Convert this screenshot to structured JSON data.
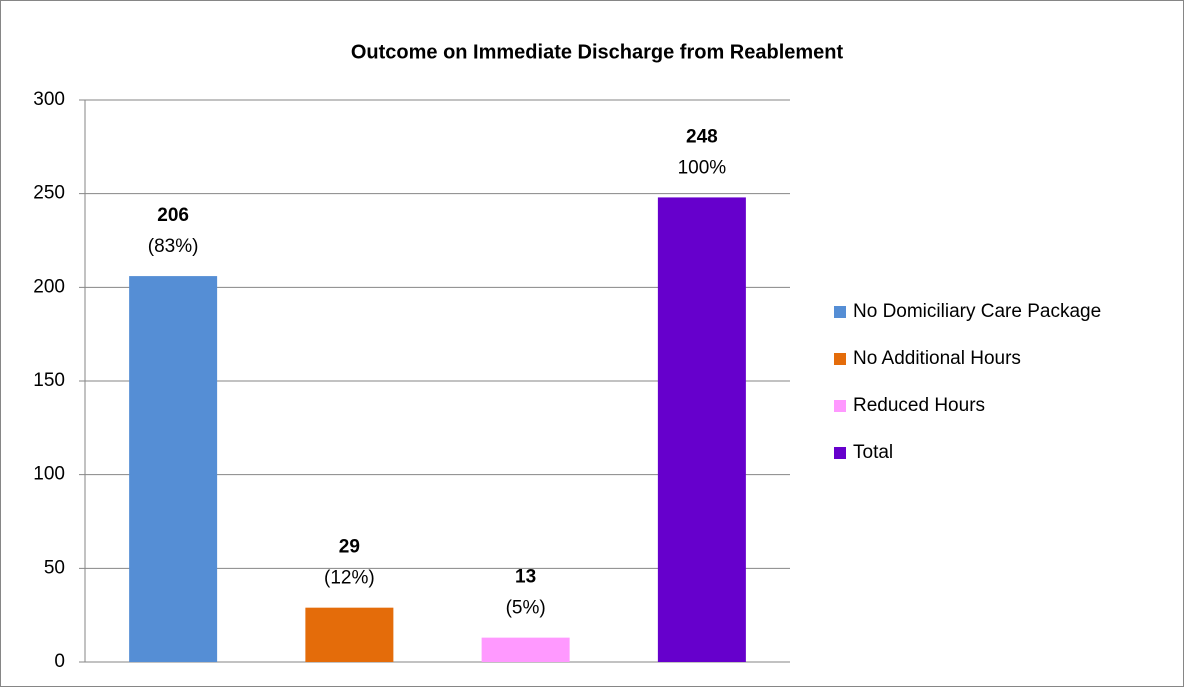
{
  "chart_data": {
    "type": "bar",
    "title": "Outcome on Immediate Discharge from Reablement",
    "series": [
      {
        "name": "No Domiciliary Care Package",
        "color": "#558ed5",
        "values": [
          206
        ],
        "percent": "(83%)"
      },
      {
        "name": "No Additional Hours",
        "color": "#e46c0a",
        "values": [
          29
        ],
        "percent": "(12%)"
      },
      {
        "name": "Reduced Hours",
        "color": "#ff99ff",
        "values": [
          13
        ],
        "percent": "(5%)"
      },
      {
        "name": "Total",
        "color": "#6600cc",
        "values": [
          248
        ],
        "percent": "100%"
      }
    ],
    "ylim": [
      0,
      300
    ],
    "yticks": [
      0,
      50,
      100,
      150,
      200,
      250,
      300
    ],
    "grid": true,
    "legend": "right"
  }
}
